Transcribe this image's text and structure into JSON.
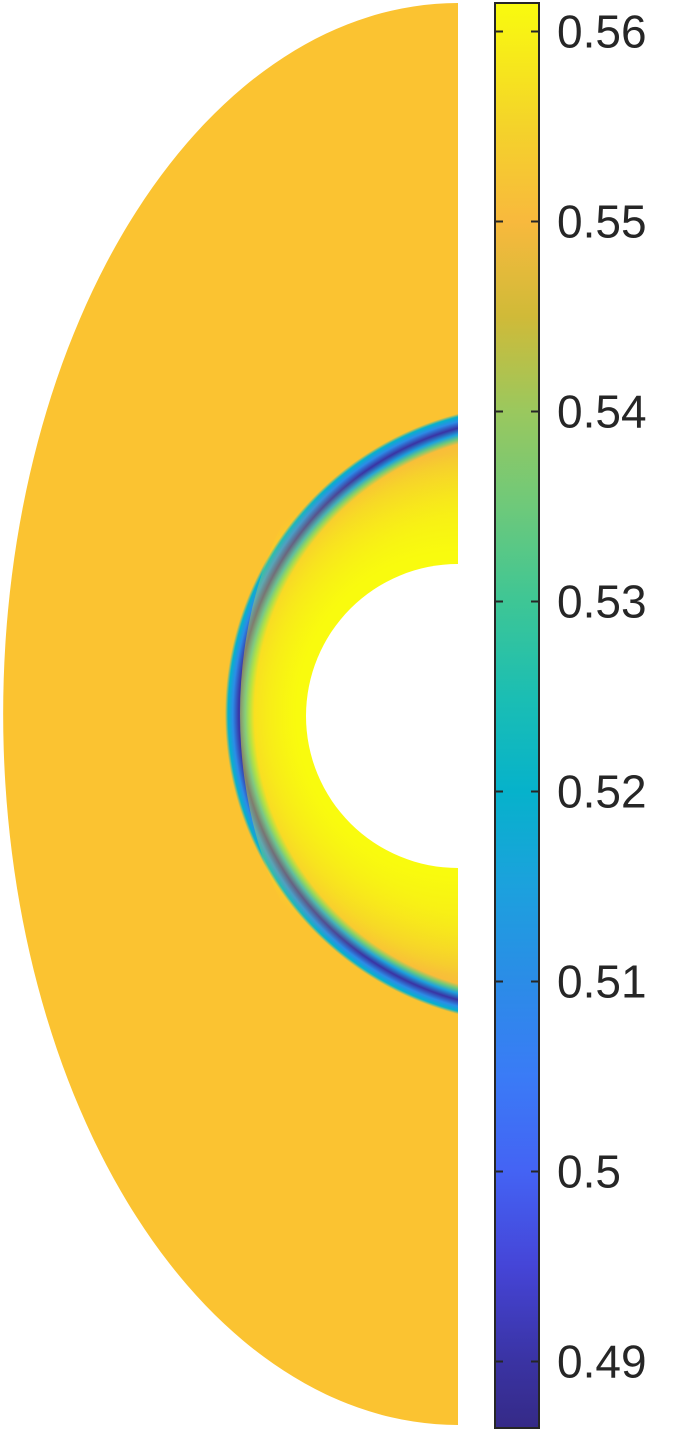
{
  "chart_data": {
    "type": "heatmap",
    "title": "",
    "xlabel": "",
    "ylabel": "",
    "colormap": "parula",
    "colorbar": {
      "position": "right",
      "clim": [
        0.4865,
        0.5615
      ],
      "ticks": [
        0.49,
        0.5,
        0.51,
        0.52,
        0.53,
        0.54,
        0.55,
        0.56
      ],
      "tick_labels": [
        "0.49",
        "0.5",
        "0.51",
        "0.52",
        "0.53",
        "0.54",
        "0.55",
        "0.56"
      ],
      "stops": [
        {
          "value": 0.4865,
          "color": "#352a87"
        },
        {
          "value": 0.49,
          "color": "#3a33a3"
        },
        {
          "value": 0.495,
          "color": "#4545d7"
        },
        {
          "value": 0.5,
          "color": "#4463f4"
        },
        {
          "value": 0.505,
          "color": "#3a7bf6"
        },
        {
          "value": 0.51,
          "color": "#2b8ce7"
        },
        {
          "value": 0.515,
          "color": "#1ca1dd"
        },
        {
          "value": 0.52,
          "color": "#06b2cb"
        },
        {
          "value": 0.525,
          "color": "#1bbeb3"
        },
        {
          "value": 0.53,
          "color": "#3ec695"
        },
        {
          "value": 0.535,
          "color": "#6ec97a"
        },
        {
          "value": 0.54,
          "color": "#9ac85e"
        },
        {
          "value": 0.545,
          "color": "#d0ba38"
        },
        {
          "value": 0.55,
          "color": "#f8b93d"
        },
        {
          "value": 0.555,
          "color": "#f4d32a"
        },
        {
          "value": 0.5615,
          "color": "#f9fb0e"
        }
      ]
    },
    "field": {
      "domain": "half-annulus (left half), circular cylinder cut out at center",
      "freestream_value": 0.551,
      "shock_min_value": 0.487,
      "post_shock_max_value": 0.5615
    }
  }
}
